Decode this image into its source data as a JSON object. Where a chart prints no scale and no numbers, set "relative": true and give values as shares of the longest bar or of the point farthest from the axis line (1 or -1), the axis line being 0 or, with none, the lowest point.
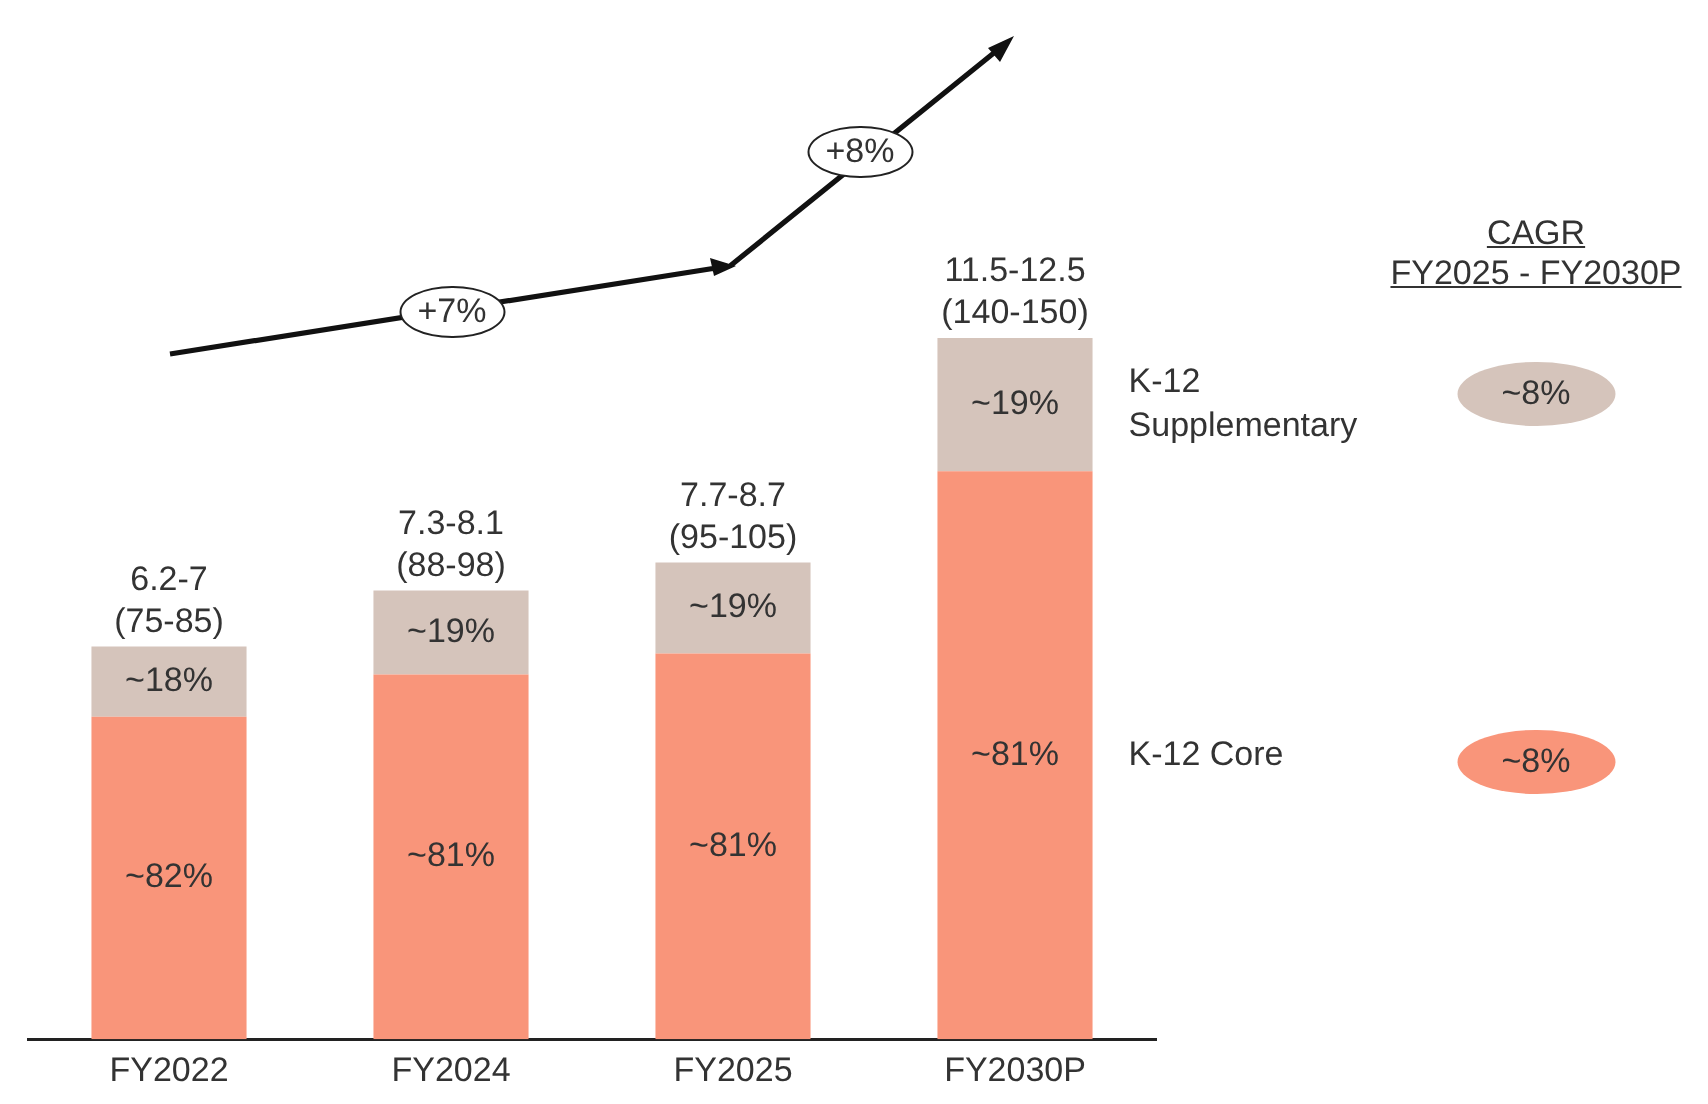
{
  "chart_data": {
    "type": "bar",
    "stacked": true,
    "legend": false,
    "relative": true,
    "categories": [
      "FY2022",
      "FY2024",
      "FY2025",
      "FY2030P"
    ],
    "series": [
      {
        "name": "K-12 Core",
        "color": "#f9957a",
        "values": [
          0.46,
          0.52,
          0.55,
          0.81
        ]
      },
      {
        "name": "K-12 Supplementary",
        "color": "#d5c4bb",
        "values": [
          0.1,
          0.12,
          0.13,
          0.19
        ]
      }
    ],
    "totals": [
      "6.2-7\n(75-85)",
      "7.3-8.1\n(88-98)",
      "7.7-8.7\n(95-105)",
      "11.5-12.5\n(140-150)"
    ],
    "annotations": [
      "~82%",
      "~81%",
      "~81%",
      "~81%",
      "~18%",
      "~19%",
      "~19%",
      "~19%",
      "+7%",
      "+8%",
      "CAGR\nFY2025 - FY2030P",
      "~8%",
      "~8%"
    ]
  }
}
